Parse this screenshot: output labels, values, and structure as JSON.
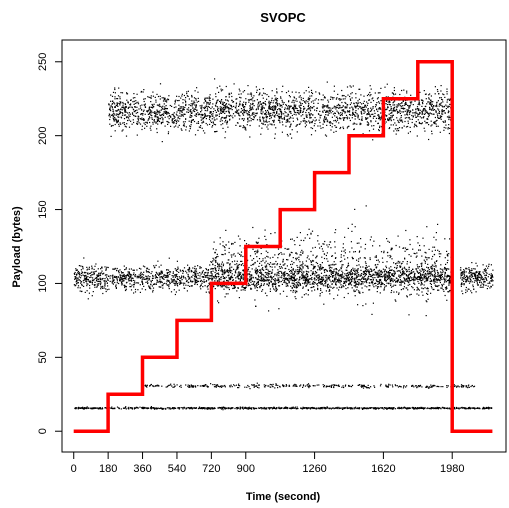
{
  "chart_data": {
    "type": "scatter",
    "title": "SVOPC",
    "xlabel": "Time (second)",
    "ylabel": "Payload (bytes)",
    "xlim": [
      -30,
      2230
    ],
    "ylim": [
      -10,
      260
    ],
    "x_ticks": [
      0,
      180,
      360,
      540,
      720,
      900,
      1260,
      1620,
      1980
    ],
    "x_tick_labels": [
      "0",
      "180",
      "360",
      "540",
      "720",
      "900",
      "1260",
      "1620",
      "1980"
    ],
    "y_ticks": [
      0,
      50,
      100,
      150,
      200,
      250
    ],
    "y_tick_labels": [
      "0",
      "50",
      "100",
      "150",
      "200",
      "250"
    ],
    "grid": false,
    "step_line": {
      "color": "#ff0000",
      "x": [
        0,
        180,
        180,
        360,
        360,
        540,
        540,
        720,
        720,
        900,
        900,
        1080,
        1080,
        1260,
        1260,
        1440,
        1440,
        1620,
        1620,
        1800,
        1800,
        1980,
        1980,
        2190
      ],
      "y": [
        0,
        0,
        25,
        25,
        50,
        50,
        75,
        75,
        100,
        100,
        125,
        125,
        150,
        150,
        175,
        175,
        200,
        200,
        225,
        225,
        250,
        250,
        0,
        0
      ]
    },
    "scatter_bands": [
      {
        "x_range": [
          0,
          2190
        ],
        "y_center": 104,
        "y_spread": 7,
        "points": 2600,
        "note_gap": [
          1980,
          2020
        ]
      },
      {
        "x_range": [
          720,
          1980
        ],
        "y_center": 112,
        "y_spread": 18,
        "points": 900
      },
      {
        "x_range": [
          180,
          1980
        ],
        "y_center": 217,
        "y_spread": 11,
        "points": 2400
      },
      {
        "x_range": [
          0,
          2190
        ],
        "y_center": 16,
        "y_spread": 0.5,
        "points": 900
      },
      {
        "x_range": [
          360,
          2100
        ],
        "y_center": 31,
        "y_spread": 1,
        "points": 350
      }
    ],
    "point_color": "#000000"
  }
}
